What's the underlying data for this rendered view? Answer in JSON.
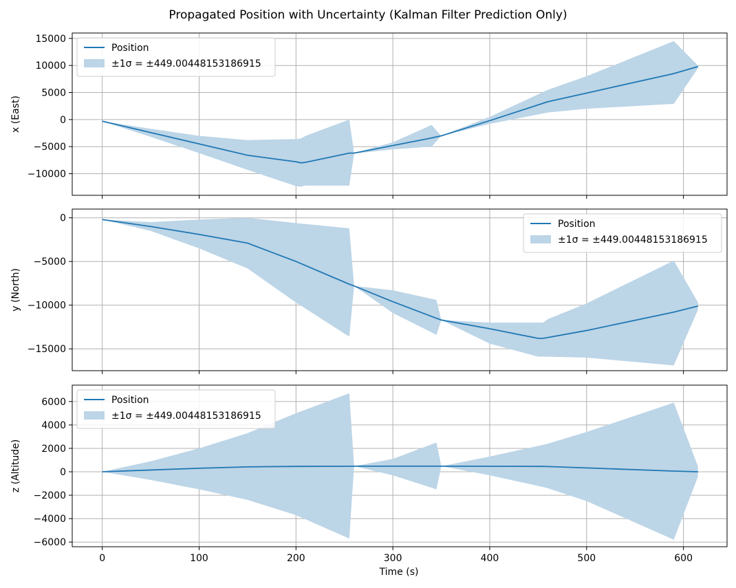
{
  "title": "Propagated Position with Uncertainty (Kalman Filter Prediction Only)",
  "xlabel": "Time (s)",
  "chart_data": [
    {
      "type": "line",
      "ylabel": "x (East)",
      "xlim": [
        -31,
        645
      ],
      "ylim": [
        -14000,
        16000
      ],
      "xticks": [
        0,
        100,
        200,
        300,
        400,
        500,
        600
      ],
      "yticks": [
        -10000,
        -5000,
        0,
        5000,
        10000,
        15000
      ],
      "ytick_labels": [
        "−10000",
        "−5000",
        "0",
        "5000",
        "10000",
        "15000"
      ],
      "legend": {
        "position": "upper left",
        "line_label": "Position",
        "band_label": "±1σ = ±449.00448153186915"
      },
      "series": [
        {
          "x": [
            0,
            50,
            100,
            150,
            200,
            205,
            210,
            255,
            260,
            300,
            340,
            350,
            400,
            460,
            500,
            590,
            615
          ],
          "y": [
            -300,
            -2400,
            -4500,
            -6600,
            -7800,
            -8000,
            -7900,
            -6200,
            -6200,
            -4800,
            -3400,
            -3000,
            -200,
            3300,
            4900,
            8500,
            9800
          ],
          "lower": [
            -300,
            -3200,
            -6200,
            -9300,
            -12300,
            -12400,
            -12200,
            -12200,
            -6300,
            -5500,
            -5000,
            -3000,
            -800,
            1300,
            2000,
            2900,
            9500
          ],
          "upper": [
            -300,
            -1700,
            -3000,
            -3800,
            -3600,
            -3500,
            -3000,
            0,
            -6200,
            -4200,
            -1000,
            -3000,
            500,
            5500,
            8000,
            14500,
            10000
          ]
        }
      ]
    },
    {
      "type": "line",
      "ylabel": "y (North)",
      "xlim": [
        -31,
        645
      ],
      "ylim": [
        -17500,
        1000
      ],
      "xticks": [
        0,
        100,
        200,
        300,
        400,
        500,
        600
      ],
      "yticks": [
        -15000,
        -10000,
        -5000,
        0
      ],
      "ytick_labels": [
        "−15000",
        "−10000",
        "−5000",
        "0"
      ],
      "legend": {
        "position": "upper right",
        "line_label": "Position",
        "band_label": "±1σ = ±449.00448153186915"
      },
      "series": [
        {
          "x": [
            0,
            50,
            100,
            150,
            200,
            255,
            260,
            300,
            345,
            350,
            400,
            450,
            455,
            460,
            500,
            590,
            615
          ],
          "y": [
            -200,
            -1000,
            -1900,
            -2900,
            -5000,
            -7600,
            -7800,
            -9600,
            -11500,
            -11700,
            -12700,
            -13800,
            -13800,
            -13700,
            -12900,
            -10800,
            -10100
          ],
          "lower": [
            -200,
            -1500,
            -3500,
            -5800,
            -9700,
            -13600,
            -7800,
            -10900,
            -13400,
            -11700,
            -14400,
            -15900,
            -15900,
            -15900,
            -16000,
            -16900,
            -10500
          ],
          "upper": [
            -200,
            -500,
            -200,
            0,
            -600,
            -1200,
            -7800,
            -8300,
            -9400,
            -11700,
            -12000,
            -12000,
            -12000,
            -11600,
            -9800,
            -4900,
            -9700
          ]
        }
      ]
    },
    {
      "type": "line",
      "ylabel": "z (Altitude)",
      "xlim": [
        -31,
        645
      ],
      "ylim": [
        -6400,
        7400
      ],
      "xticks": [
        0,
        100,
        200,
        300,
        400,
        500,
        600
      ],
      "xtick_labels": [
        "0",
        "100",
        "200",
        "300",
        "400",
        "500",
        "600"
      ],
      "yticks": [
        -6000,
        -4000,
        -2000,
        0,
        2000,
        4000,
        6000
      ],
      "ytick_labels": [
        "−6000",
        "−4000",
        "−2000",
        "0",
        "2000",
        "4000",
        "6000"
      ],
      "legend": {
        "position": "upper left",
        "line_label": "Position",
        "band_label": "±1σ = ±449.00448153186915"
      },
      "series": [
        {
          "x": [
            0,
            50,
            100,
            150,
            200,
            255,
            260,
            300,
            345,
            350,
            400,
            455,
            460,
            500,
            590,
            615
          ],
          "y": [
            0,
            150,
            300,
            420,
            460,
            470,
            480,
            480,
            480,
            480,
            470,
            460,
            450,
            330,
            60,
            0
          ],
          "lower": [
            0,
            -700,
            -1500,
            -2400,
            -3700,
            -5700,
            480,
            -300,
            -1500,
            480,
            -300,
            -1300,
            -1400,
            -2500,
            -5800,
            -400
          ],
          "upper": [
            0,
            900,
            2000,
            3300,
            5000,
            6700,
            480,
            1100,
            2500,
            480,
            1300,
            2300,
            2400,
            3400,
            5900,
            450
          ]
        }
      ]
    }
  ],
  "colors": {
    "line": "#1f77b4",
    "band": "#bcd5e7",
    "grid": "#b0b0b0"
  }
}
